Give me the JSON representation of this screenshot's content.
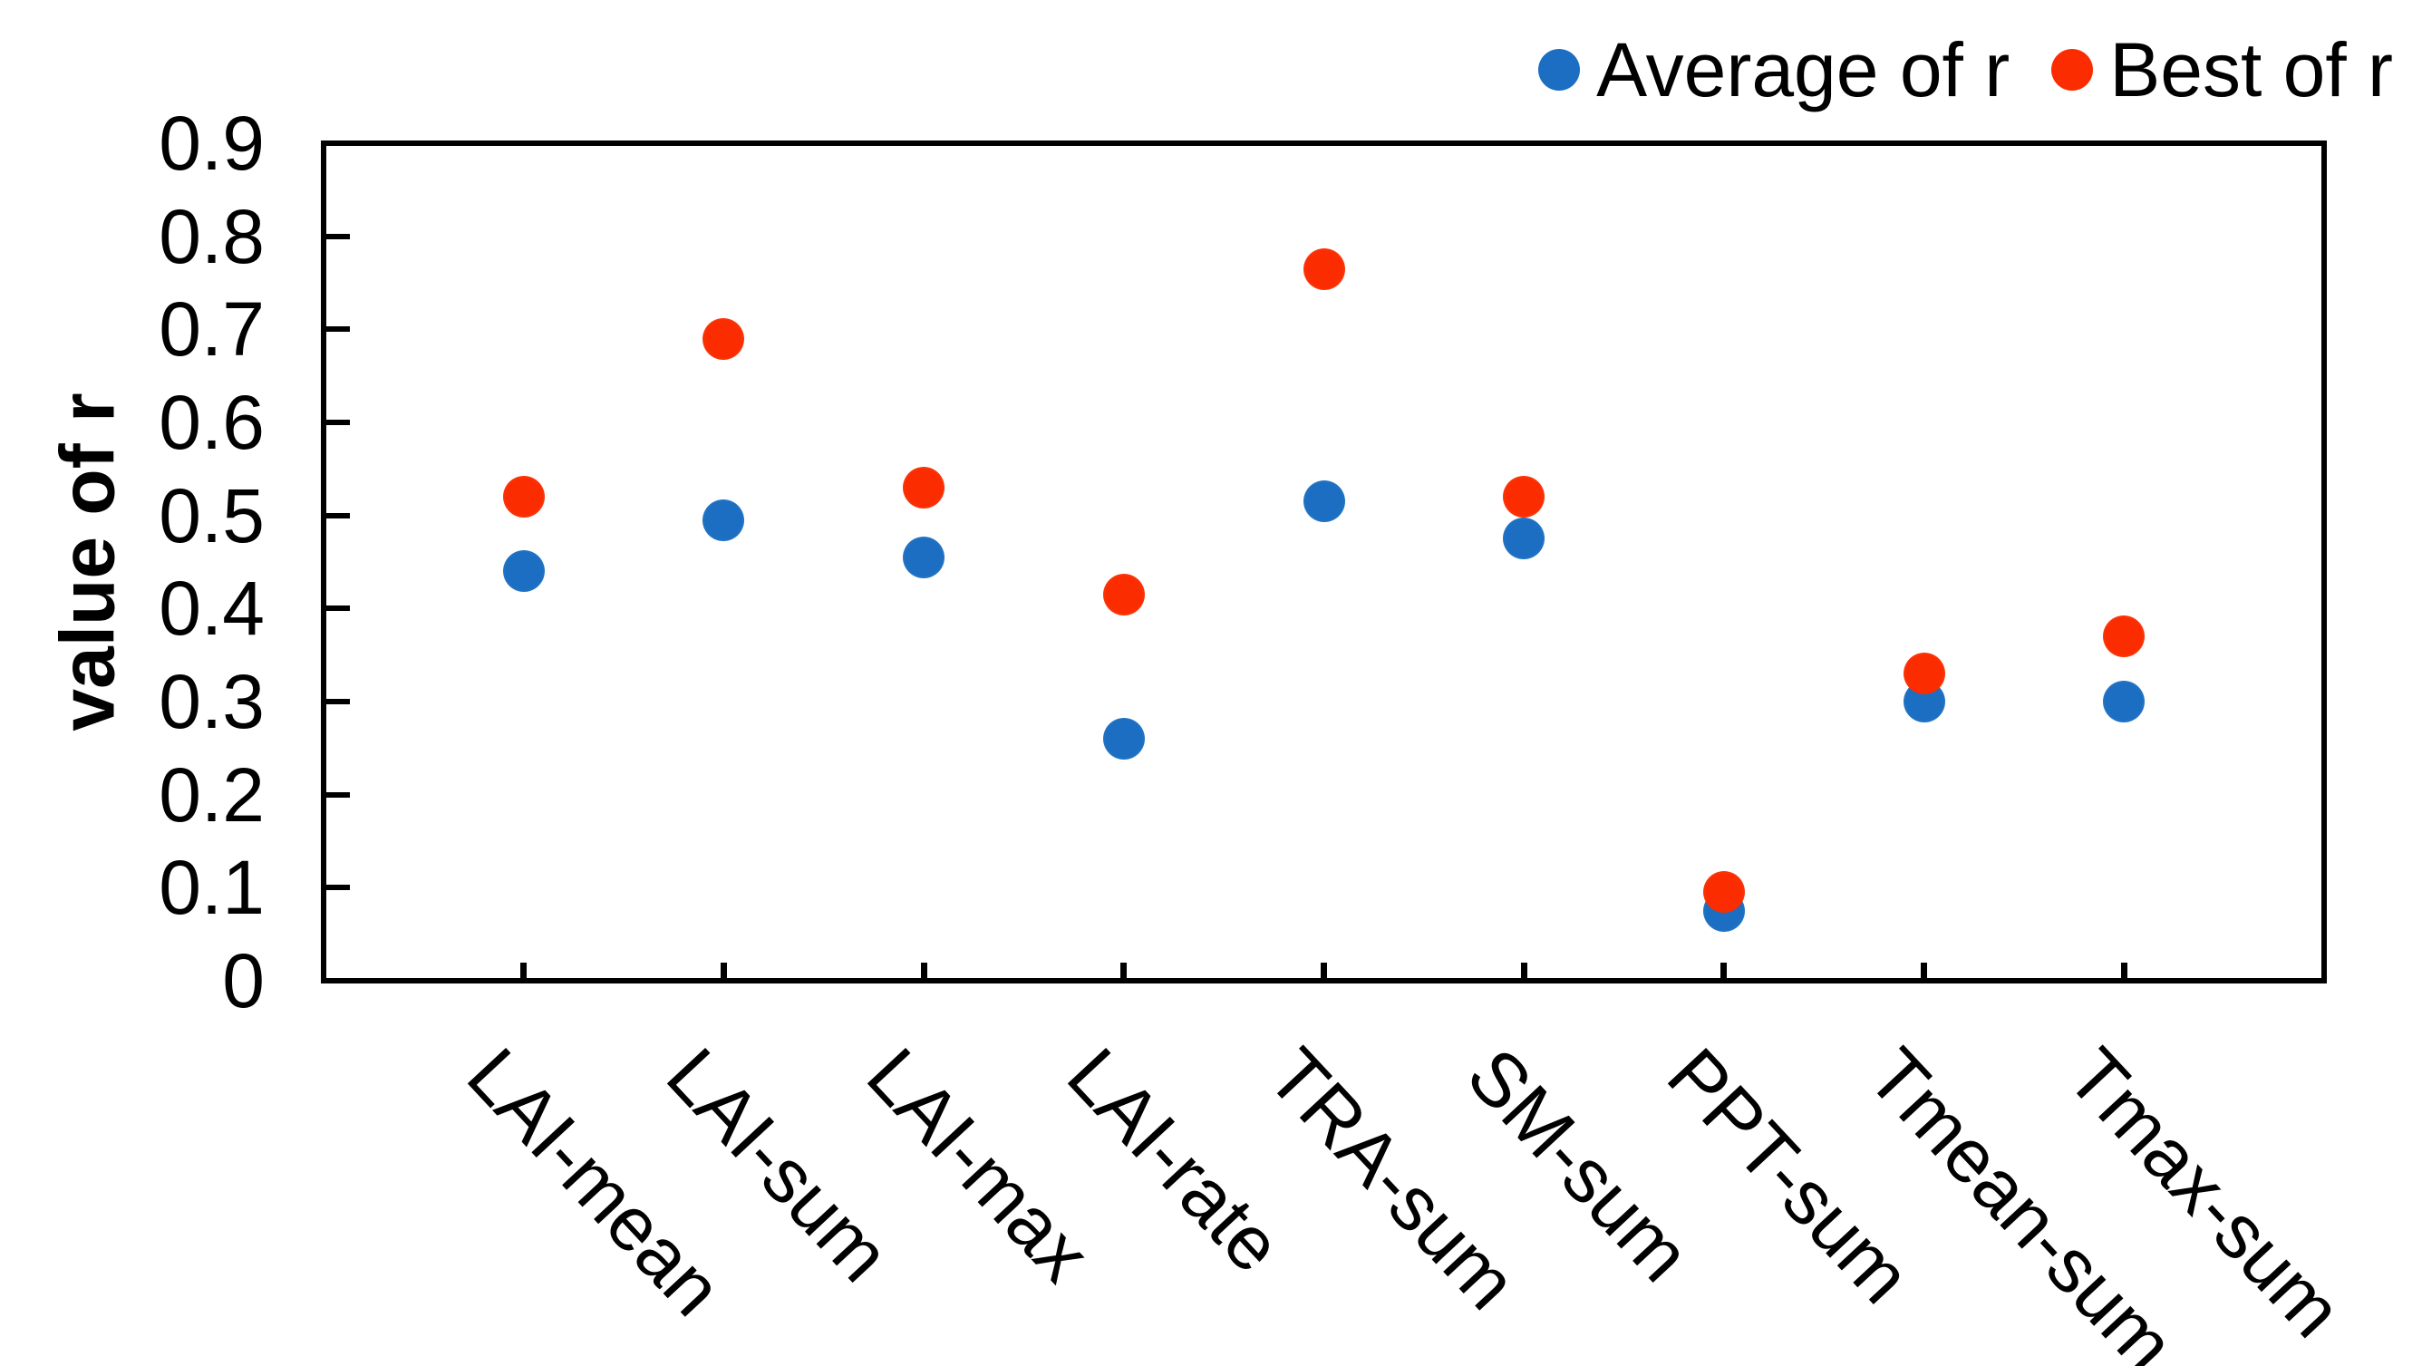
{
  "chart_data": {
    "type": "scatter",
    "title": "",
    "xlabel": "",
    "ylabel": "value of r",
    "ylim": [
      0,
      0.9
    ],
    "ytick_labels": [
      "0",
      "0.1",
      "0.2",
      "0.3",
      "0.4",
      "0.5",
      "0.6",
      "0.7",
      "0.8",
      "0.9"
    ],
    "categories": [
      "LAI-mean",
      "LAI-sum",
      "LAI-max",
      "LAI-rate",
      "TRA-sum",
      "SM-sum",
      "PPT-sum",
      "Tmean-sum",
      "Tmax-sum"
    ],
    "series": [
      {
        "name": "Average of r",
        "color": "#1b6ec1",
        "values": [
          0.44,
          0.495,
          0.455,
          0.26,
          0.515,
          0.475,
          0.075,
          0.3,
          0.3
        ]
      },
      {
        "name": "Best of r",
        "color": "#fb2d00",
        "values": [
          0.52,
          0.69,
          0.53,
          0.415,
          0.765,
          0.52,
          0.095,
          0.33,
          0.37
        ]
      }
    ],
    "legend_position": "top-right",
    "grid": false,
    "marker": "circle"
  }
}
